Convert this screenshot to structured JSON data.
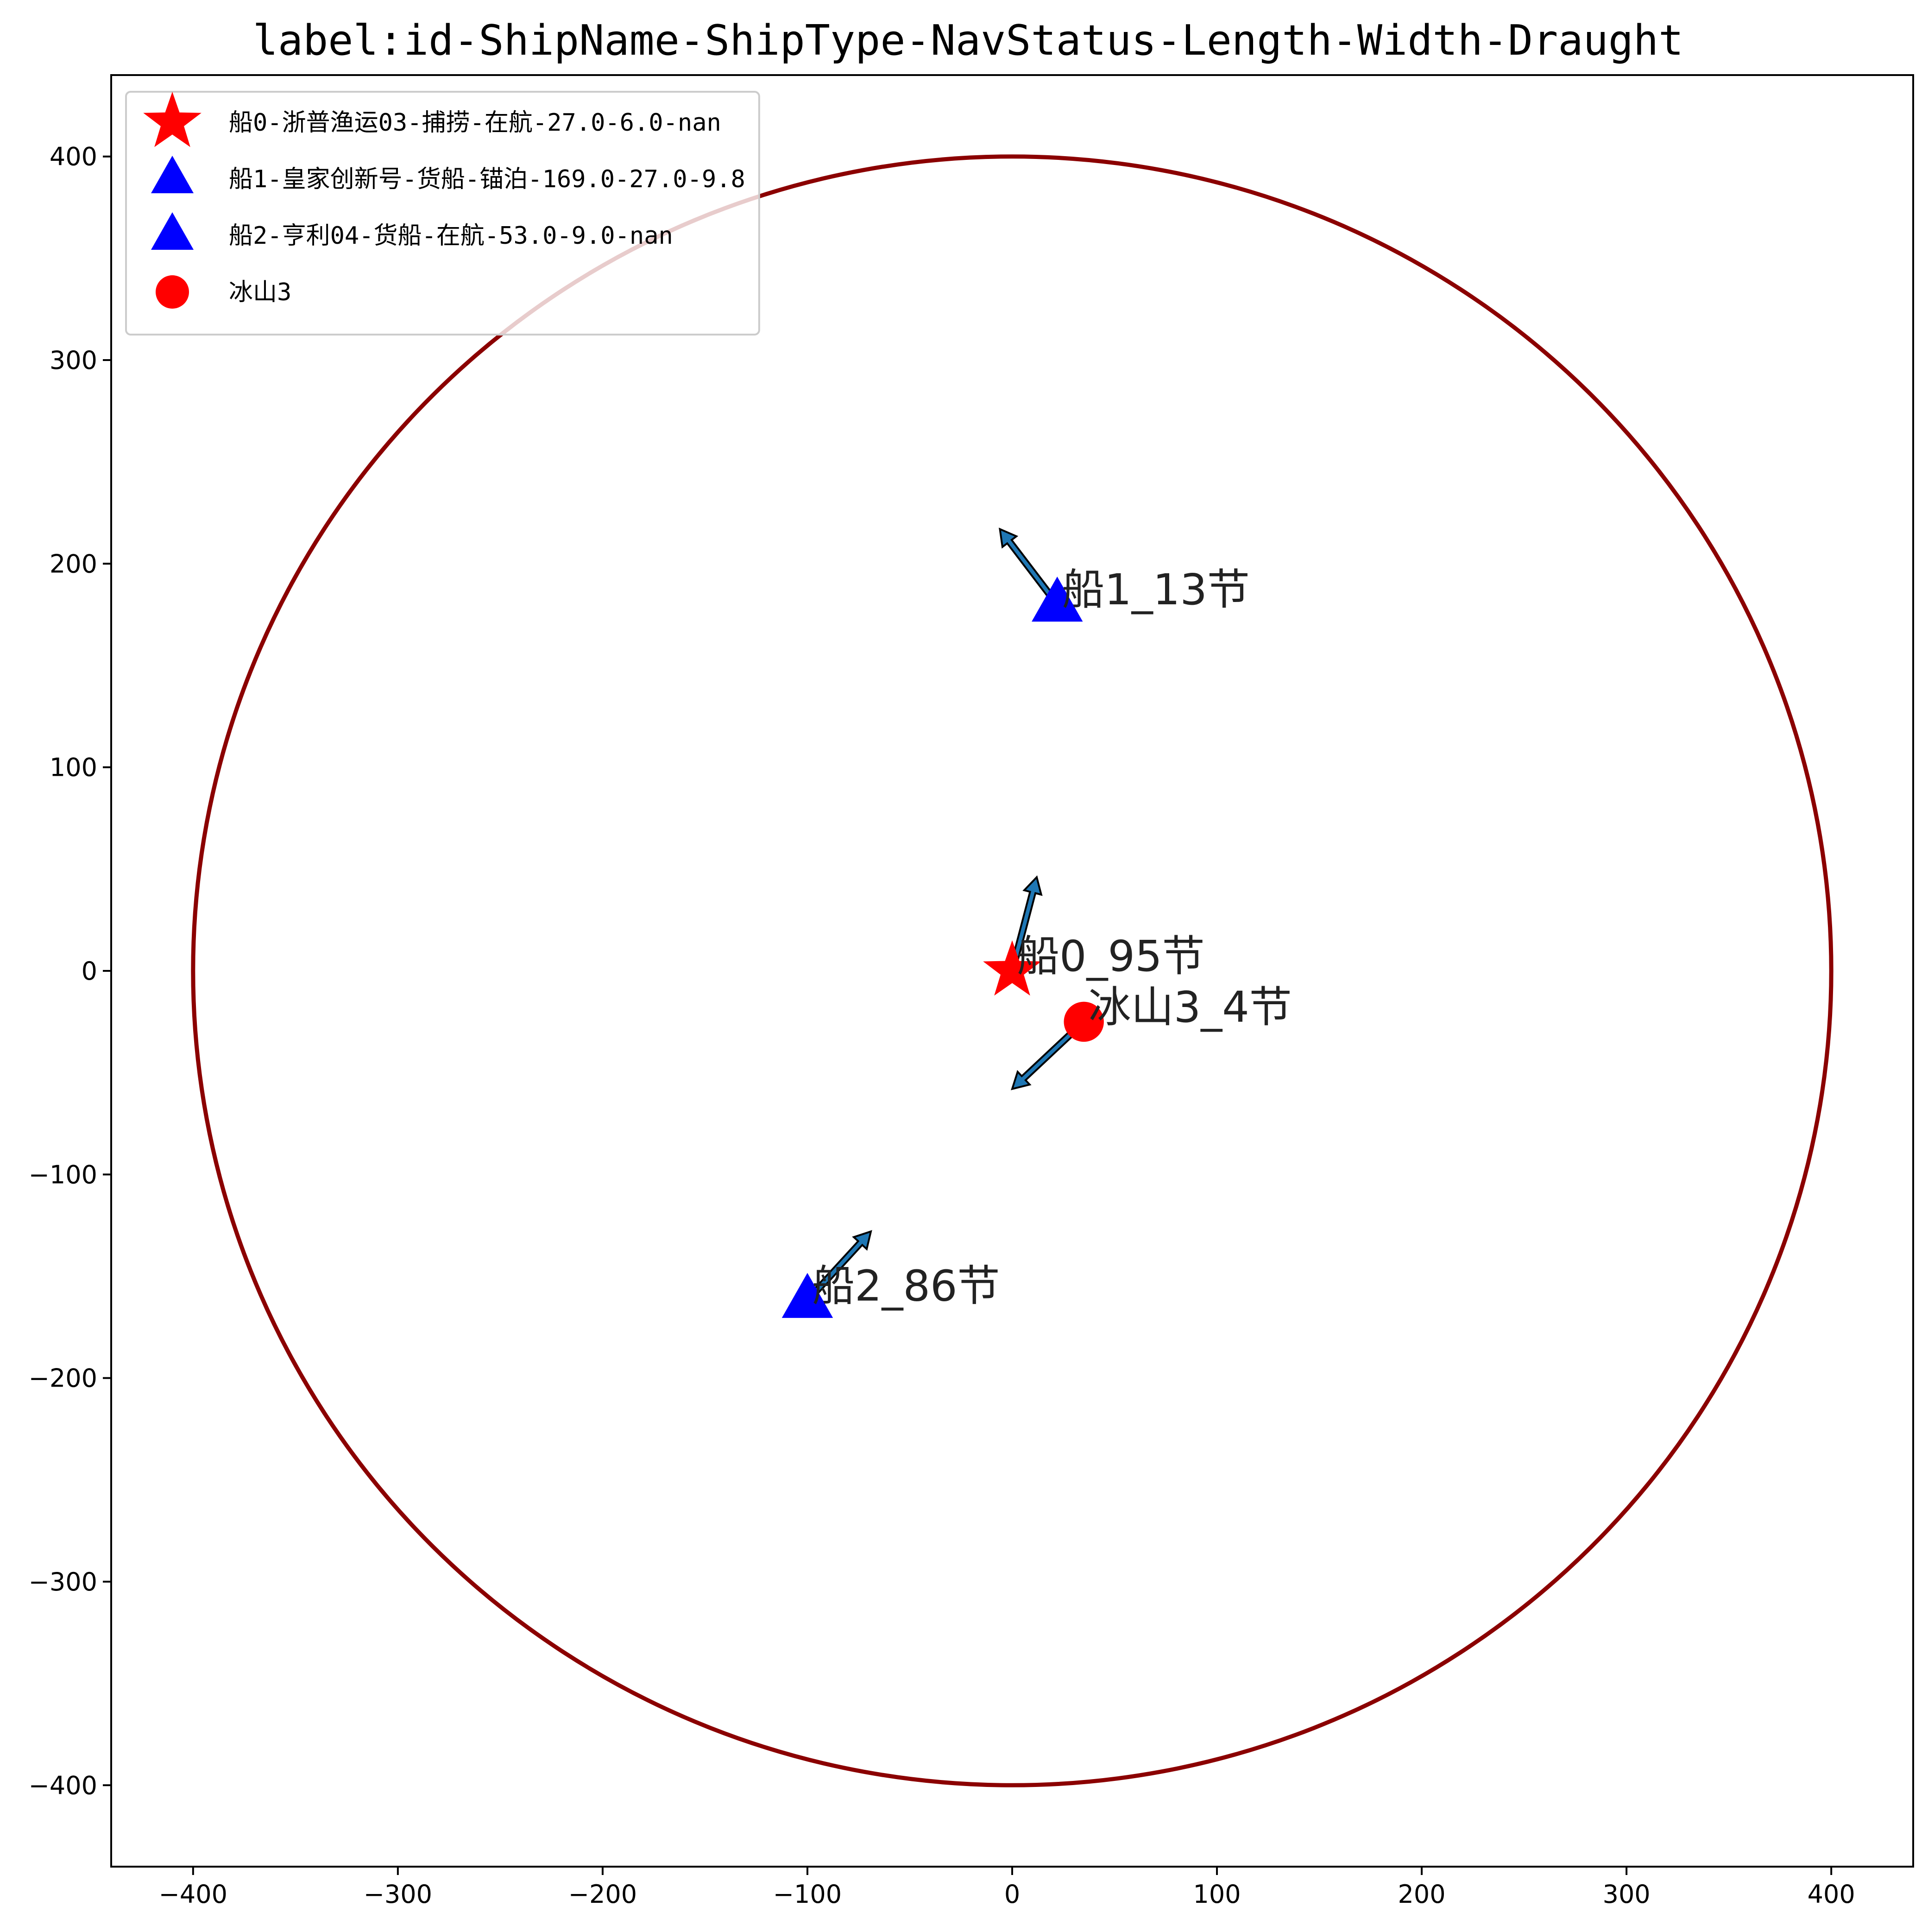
{
  "chart_data": {
    "type": "scatter",
    "title": "label:id-ShipName-ShipType-NavStatus-Length-Width-Draught",
    "xlabel": "",
    "ylabel": "",
    "xlim": [
      -440,
      440
    ],
    "ylim": [
      -440,
      440
    ],
    "xticks": [
      -400,
      -300,
      -200,
      -100,
      0,
      100,
      200,
      300,
      400
    ],
    "yticks": [
      -400,
      -300,
      -200,
      -100,
      0,
      100,
      200,
      300,
      400
    ],
    "grid": false,
    "legend_position": "top-left",
    "range_circle": {
      "center": [
        0,
        0
      ],
      "radius": 400,
      "color": "#8b0000"
    },
    "series": [
      {
        "name": "船0-浙普渔运03-捕捞-在航-27.0-6.0-nan",
        "marker": "star",
        "color": "#ff0000",
        "x": 0,
        "y": 0,
        "arrow_to": [
          12,
          46
        ],
        "annotation": "船0_95节"
      },
      {
        "name": "船1-皇家创新号-货船-锚泊-169.0-27.0-9.8",
        "marker": "triangle",
        "color": "#0000ff",
        "x": 22,
        "y": 180,
        "arrow_to": [
          -6,
          217
        ],
        "annotation": "船1_13节"
      },
      {
        "name": "船2-亨利04-货船-在航-53.0-9.0-nan",
        "marker": "triangle",
        "color": "#0000ff",
        "x": -100,
        "y": -162,
        "arrow_to": [
          -69,
          -128
        ],
        "annotation": "船2_86节"
      },
      {
        "name": "冰山3",
        "marker": "circle",
        "color": "#ff0000",
        "x": 35,
        "y": -25,
        "arrow_to": [
          0,
          -58
        ],
        "annotation": "冰山3_4节"
      }
    ],
    "arrow_color": "#1f77b4"
  }
}
